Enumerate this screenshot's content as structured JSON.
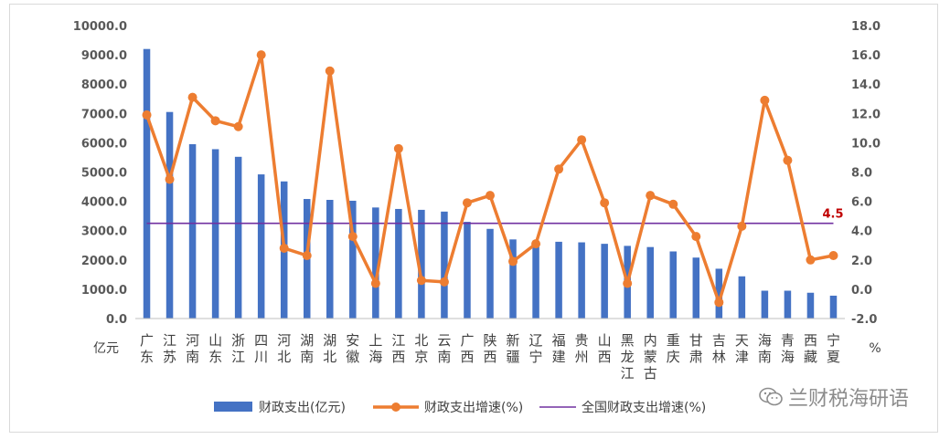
{
  "chart_data": {
    "type": "bar",
    "categories": [
      "广东",
      "江苏",
      "河南",
      "山东",
      "浙江",
      "四川",
      "河北",
      "湖南",
      "湖北",
      "安徽",
      "上海",
      "江西",
      "北京",
      "云南",
      "广西",
      "陕西",
      "新疆",
      "辽宁",
      "福建",
      "贵州",
      "山西",
      "黑龙江",
      "内蒙古",
      "重庆",
      "甘肃",
      "吉林",
      "天津",
      "海南",
      "青海",
      "西藏",
      "宁夏"
    ],
    "series": [
      {
        "name": "财政支出(亿元)",
        "type": "bar",
        "axis": "left",
        "color": "#4472c4",
        "values": [
          9200,
          7050,
          5950,
          5780,
          5520,
          4920,
          4680,
          4080,
          4050,
          4020,
          3790,
          3740,
          3710,
          3650,
          3300,
          3060,
          2700,
          2600,
          2620,
          2600,
          2550,
          2480,
          2440,
          2290,
          2080,
          1700,
          1440,
          950,
          950,
          880,
          780
        ]
      },
      {
        "name": "财政支出增速(%)",
        "type": "line",
        "axis": "right",
        "color": "#ed7d31",
        "values": [
          11.9,
          7.5,
          13.1,
          11.5,
          11.1,
          16.0,
          2.8,
          2.3,
          14.9,
          3.6,
          0.4,
          9.6,
          0.6,
          0.5,
          5.9,
          6.4,
          1.9,
          3.1,
          8.2,
          10.2,
          5.9,
          0.4,
          6.4,
          5.8,
          3.6,
          -0.9,
          4.3,
          12.9,
          8.8,
          2.0,
          2.3
        ]
      },
      {
        "name": "全国财政支出增速(%)",
        "type": "hline",
        "axis": "right",
        "color": "#7030a0",
        "value": 4.5
      }
    ],
    "left_axis": {
      "min": 0,
      "max": 10000,
      "step": 1000,
      "decimals": 1,
      "unit": "亿元"
    },
    "right_axis": {
      "min": -2,
      "max": 18,
      "step": 2,
      "decimals": 1,
      "unit": "%"
    },
    "reference_label": "4.5",
    "legend_position": "bottom",
    "grid": false
  },
  "watermark": {
    "text": "兰财税海研语",
    "icon": "wechat-icon"
  }
}
